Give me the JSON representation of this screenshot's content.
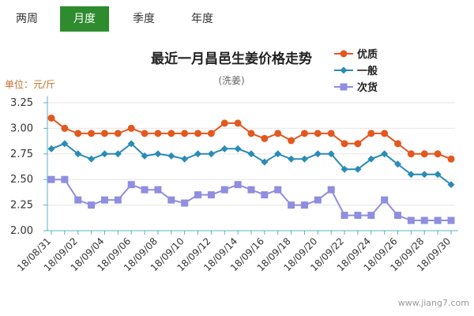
{
  "tabs": [
    {
      "label": "两周",
      "active": false
    },
    {
      "label": "月度",
      "active": true
    },
    {
      "label": "季度",
      "active": false
    },
    {
      "label": "年度",
      "active": false
    }
  ],
  "watermark": "www.jiang7.com",
  "colors": {
    "axis": "#5bb0c8",
    "grid": "#e6e6e6",
    "tab_active": "#2e8b2e",
    "unit_text": "#c8702a"
  },
  "chart_data": {
    "type": "line",
    "title": "最近一月昌邑生姜价格走势",
    "subtitle": "(洗姜)",
    "ylabel": "单位：元/斤",
    "ylim": [
      2.0,
      3.25
    ],
    "yticks": [
      "2.00",
      "2.25",
      "2.50",
      "2.75",
      "3.00",
      "3.25"
    ],
    "categories": [
      "18/08/31",
      "18/09/01",
      "18/09/02",
      "18/09/03",
      "18/09/04",
      "18/09/05",
      "18/09/06",
      "18/09/07",
      "18/09/08",
      "18/09/09",
      "18/09/10",
      "18/09/11",
      "18/09/12",
      "18/09/13",
      "18/09/14",
      "18/09/15",
      "18/09/16",
      "18/09/17",
      "18/09/18",
      "18/09/19",
      "18/09/20",
      "18/09/21",
      "18/09/22",
      "18/09/23",
      "18/09/24",
      "18/09/25",
      "18/09/26",
      "18/09/27",
      "18/09/28",
      "18/09/29",
      "18/09/30"
    ],
    "xticks_shown": [
      "18/08/31",
      "18/09/02",
      "18/09/04",
      "18/09/06",
      "18/09/08",
      "18/09/10",
      "18/09/12",
      "18/09/14",
      "18/09/16",
      "18/09/18",
      "18/09/20",
      "18/09/22",
      "18/09/24",
      "18/09/26",
      "18/09/28",
      "18/09/30"
    ],
    "legend_position": "top-right",
    "series": [
      {
        "name": "优质",
        "color": "#e3581f",
        "marker": "circle",
        "values": [
          3.1,
          3.0,
          2.95,
          2.95,
          2.95,
          2.95,
          3.0,
          2.95,
          2.95,
          2.95,
          2.95,
          2.95,
          2.95,
          3.05,
          3.05,
          2.95,
          2.9,
          2.95,
          2.88,
          2.95,
          2.95,
          2.95,
          2.85,
          2.85,
          2.95,
          2.95,
          2.85,
          2.75,
          2.75,
          2.75,
          2.7
        ]
      },
      {
        "name": "一般",
        "color": "#2a8bb7",
        "marker": "diamond",
        "values": [
          2.8,
          2.85,
          2.75,
          2.7,
          2.75,
          2.75,
          2.85,
          2.73,
          2.75,
          2.73,
          2.7,
          2.75,
          2.75,
          2.8,
          2.8,
          2.75,
          2.67,
          2.75,
          2.7,
          2.7,
          2.75,
          2.75,
          2.6,
          2.6,
          2.7,
          2.75,
          2.65,
          2.55,
          2.55,
          2.55,
          2.45
        ]
      },
      {
        "name": "次货",
        "color": "#8f8ee0",
        "marker": "square",
        "values": [
          2.5,
          2.5,
          2.3,
          2.25,
          2.3,
          2.3,
          2.45,
          2.4,
          2.4,
          2.3,
          2.27,
          2.35,
          2.35,
          2.4,
          2.45,
          2.4,
          2.35,
          2.4,
          2.25,
          2.25,
          2.3,
          2.4,
          2.15,
          2.15,
          2.15,
          2.3,
          2.15,
          2.1,
          2.1,
          2.1,
          2.1
        ]
      }
    ]
  }
}
